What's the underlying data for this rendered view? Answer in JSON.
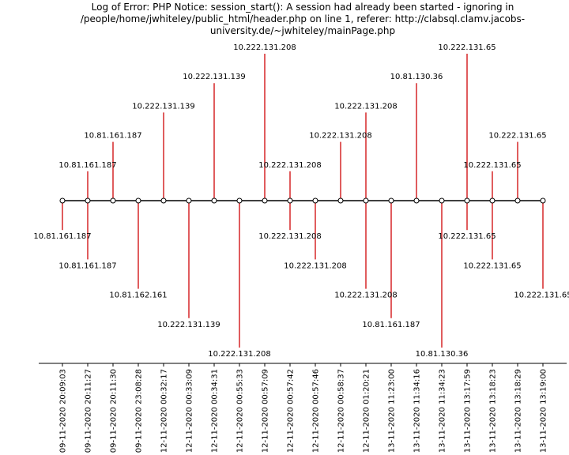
{
  "chart_data": {
    "type": "timeline",
    "title": "Log of Error: PHP Notice:  session_start(): A session had already been started - ignoring in /people/home/jwhiteley/public_html/header.php on line 1, referer: http://clabsql.clamv.jacobs-university.de/~jwhiteley/mainPage.php",
    "events": [
      {
        "time": "09-11-2020 20:09:03",
        "label": "10.81.161.187",
        "level": -1
      },
      {
        "time": "09-11-2020 20:11:27",
        "label": "10.81.161.187",
        "level": 1
      },
      {
        "time": "09-11-2020 20:11:27",
        "label": "10.81.161.187",
        "level": -2
      },
      {
        "time": "09-11-2020 20:11:30",
        "label": "10.81.161.187",
        "level": 2
      },
      {
        "time": "09-11-2020 23:08:28",
        "label": "10.81.162.161",
        "level": -3
      },
      {
        "time": "12-11-2020 00:32:17",
        "label": "10.222.131.139",
        "level": 3
      },
      {
        "time": "12-11-2020 00:33:09",
        "label": "10.222.131.139",
        "level": -4
      },
      {
        "time": "12-11-2020 00:34:31",
        "label": "10.222.131.139",
        "level": 4
      },
      {
        "time": "12-11-2020 00:55:33",
        "label": "10.222.131.208",
        "level": -5
      },
      {
        "time": "12-11-2020 00:57:09",
        "label": "10.222.131.208",
        "level": 5
      },
      {
        "time": "12-11-2020 00:57:42",
        "label": "10.222.131.208",
        "level": -1
      },
      {
        "time": "12-11-2020 00:57:42",
        "label": "10.222.131.208",
        "level": 1
      },
      {
        "time": "12-11-2020 00:57:46",
        "label": "10.222.131.208",
        "level": -2
      },
      {
        "time": "12-11-2020 00:58:37",
        "label": "10.222.131.208",
        "level": 2
      },
      {
        "time": "12-11-2020 01:20:21",
        "label": "10.222.131.208",
        "level": -3
      },
      {
        "time": "12-11-2020 01:20:21",
        "label": "10.222.131.208",
        "level": 3
      },
      {
        "time": "13-11-2020 11:23:00",
        "label": "10.81.161.187",
        "level": -4
      },
      {
        "time": "13-11-2020 11:34:16",
        "label": "10.81.130.36",
        "level": 4
      },
      {
        "time": "13-11-2020 11:34:23",
        "label": "10.81.130.36",
        "level": -5
      },
      {
        "time": "13-11-2020 13:17:59",
        "label": "10.222.131.65",
        "level": 5
      },
      {
        "time": "13-11-2020 13:17:59",
        "label": "10.222.131.65",
        "level": -1
      },
      {
        "time": "13-11-2020 13:18:23",
        "label": "10.222.131.65",
        "level": 1
      },
      {
        "time": "13-11-2020 13:18:23",
        "label": "10.222.131.65",
        "level": -2
      },
      {
        "time": "13-11-2020 13:18:29",
        "label": "10.222.131.65",
        "level": 2
      },
      {
        "time": "13-11-2020 13:19:00",
        "label": "10.222.131.65",
        "level": -3
      }
    ],
    "x_ticks": [
      "09-11-2020 20:09:03",
      "09-11-2020 20:11:27",
      "09-11-2020 20:11:30",
      "09-11-2020 23:08:28",
      "12-11-2020 00:32:17",
      "12-11-2020 00:33:09",
      "12-11-2020 00:34:31",
      "12-11-2020 00:55:33",
      "12-11-2020 00:57:09",
      "12-11-2020 00:57:42",
      "12-11-2020 00:57:46",
      "12-11-2020 00:58:37",
      "12-11-2020 01:20:21",
      "13-11-2020 11:23:00",
      "13-11-2020 11:34:16",
      "13-11-2020 11:34:23",
      "13-11-2020 13:17:59",
      "13-11-2020 13:18:23",
      "13-11-2020 13:18:29",
      "13-11-2020 13:19:00"
    ],
    "stem_color": "#d62728",
    "baseline_color": "#000000",
    "marker_fill": "#ffffff",
    "grid": false,
    "y_axis_visible": false
  }
}
